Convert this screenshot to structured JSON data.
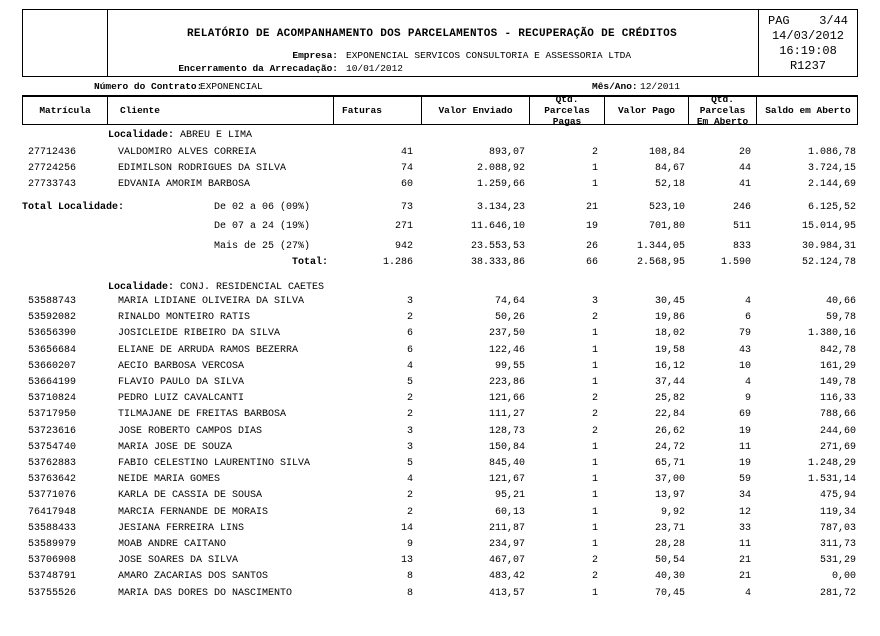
{
  "colors": {
    "text": "#000000",
    "border": "#000000",
    "background": "#ffffff"
  },
  "page": {
    "header": {
      "title": "RELATÓRIO DE ACOMPANHAMENTO DOS PARCELAMENTOS - RECUPERAÇÃO DE CRÉDITOS",
      "company_label": "Empresa:",
      "company_value": "EXPONENCIAL SERVICOS CONSULTORIA E ASSESSORIA LTDA",
      "closing_label": "Encerramento da Arrecadação:",
      "closing_value": "10/01/2012",
      "page_box": {
        "page_label": "PAG",
        "page_number": "3/44",
        "date": "14/03/2012",
        "time": "16:19:08",
        "report_code": "R1237"
      }
    },
    "contract_bar": {
      "contract_label": "Número do Contrato:",
      "contract_value": "EXPONENCIAL",
      "month_year_label": "Mês/Ano:",
      "month_year_value": "12/2011"
    },
    "table": {
      "columns": [
        "Matrícula",
        "Cliente",
        "Faturas",
        "Valor Enviado",
        "Qtd. Parcelas\nPagas",
        "Valor Pago",
        "Qtd. Parcelas\nEm Aberto",
        "Saldo em Aberto"
      ],
      "locality_label": "Localidade:",
      "total_locality_label": "Total Localidade:",
      "sections": [
        {
          "localidade": "ABREU E LIMA",
          "rows": [
            {
              "matricula": "27712436",
              "cliente": "VALDOMIRO ALVES CORREIA",
              "faturas": "41",
              "valor_enviado": "893,07",
              "qtd_pagas": "2",
              "valor_pago": "108,84",
              "qtd_aberto": "20",
              "saldo": "1.086,78"
            },
            {
              "matricula": "27724256",
              "cliente": "EDIMILSON RODRIGUES DA SILVA",
              "faturas": "74",
              "valor_enviado": "2.088,92",
              "qtd_pagas": "1",
              "valor_pago": "84,67",
              "qtd_aberto": "44",
              "saldo": "3.724,15"
            },
            {
              "matricula": "27733743",
              "cliente": "EDVANIA AMORIM BARBOSA",
              "faturas": "60",
              "valor_enviado": "1.259,66",
              "qtd_pagas": "1",
              "valor_pago": "52,18",
              "qtd_aberto": "41",
              "saldo": "2.144,69"
            }
          ],
          "totals": {
            "tiers": [
              {
                "label": "De 02 a 06 (09%)",
                "faturas": "73",
                "valor_enviado": "3.134,23",
                "qtd_pagas": "21",
                "valor_pago": "523,10",
                "qtd_aberto": "246",
                "saldo": "6.125,52"
              },
              {
                "label": "De 07 a 24 (19%)",
                "faturas": "271",
                "valor_enviado": "11.646,10",
                "qtd_pagas": "19",
                "valor_pago": "701,80",
                "qtd_aberto": "511",
                "saldo": "15.014,95"
              },
              {
                "label": "Mais de 25 (27%)",
                "faturas": "942",
                "valor_enviado": "23.553,53",
                "qtd_pagas": "26",
                "valor_pago": "1.344,05",
                "qtd_aberto": "833",
                "saldo": "30.984,31"
              }
            ],
            "grand": {
              "label": "Total:",
              "faturas": "1.286",
              "valor_enviado": "38.333,86",
              "qtd_pagas": "66",
              "valor_pago": "2.568,95",
              "qtd_aberto": "1.590",
              "saldo": "52.124,78"
            }
          }
        },
        {
          "localidade": "CONJ. RESIDENCIAL CAETES",
          "rows": [
            {
              "matricula": "53588743",
              "cliente": "MARIA LIDIANE OLIVEIRA DA SILVA",
              "faturas": "3",
              "valor_enviado": "74,64",
              "qtd_pagas": "3",
              "valor_pago": "30,45",
              "qtd_aberto": "4",
              "saldo": "40,66"
            },
            {
              "matricula": "53592082",
              "cliente": "RINALDO MONTEIRO RATIS",
              "faturas": "2",
              "valor_enviado": "50,26",
              "qtd_pagas": "2",
              "valor_pago": "19,86",
              "qtd_aberto": "6",
              "saldo": "59,78"
            },
            {
              "matricula": "53656390",
              "cliente": "JOSICLEIDE RIBEIRO DA SILVA",
              "faturas": "6",
              "valor_enviado": "237,50",
              "qtd_pagas": "1",
              "valor_pago": "18,02",
              "qtd_aberto": "79",
              "saldo": "1.380,16"
            },
            {
              "matricula": "53656684",
              "cliente": "ELIANE DE ARRUDA RAMOS BEZERRA",
              "faturas": "6",
              "valor_enviado": "122,46",
              "qtd_pagas": "1",
              "valor_pago": "19,58",
              "qtd_aberto": "43",
              "saldo": "842,78"
            },
            {
              "matricula": "53660207",
              "cliente": "AECIO BARBOSA VERCOSA",
              "faturas": "4",
              "valor_enviado": "99,55",
              "qtd_pagas": "1",
              "valor_pago": "16,12",
              "qtd_aberto": "10",
              "saldo": "161,29"
            },
            {
              "matricula": "53664199",
              "cliente": "FLAVIO PAULO DA SILVA",
              "faturas": "5",
              "valor_enviado": "223,86",
              "qtd_pagas": "1",
              "valor_pago": "37,44",
              "qtd_aberto": "4",
              "saldo": "149,78"
            },
            {
              "matricula": "53710824",
              "cliente": "PEDRO LUIZ CAVALCANTI",
              "faturas": "2",
              "valor_enviado": "121,66",
              "qtd_pagas": "2",
              "valor_pago": "25,82",
              "qtd_aberto": "9",
              "saldo": "116,33"
            },
            {
              "matricula": "53717950",
              "cliente": "TILMAJANE DE FREITAS BARBOSA",
              "faturas": "2",
              "valor_enviado": "111,27",
              "qtd_pagas": "2",
              "valor_pago": "22,84",
              "qtd_aberto": "69",
              "saldo": "788,66"
            },
            {
              "matricula": "53723616",
              "cliente": "JOSE ROBERTO CAMPOS DIAS",
              "faturas": "3",
              "valor_enviado": "128,73",
              "qtd_pagas": "2",
              "valor_pago": "26,62",
              "qtd_aberto": "19",
              "saldo": "244,60"
            },
            {
              "matricula": "53754740",
              "cliente": "MARIA JOSE DE SOUZA",
              "faturas": "3",
              "valor_enviado": "150,84",
              "qtd_pagas": "1",
              "valor_pago": "24,72",
              "qtd_aberto": "11",
              "saldo": "271,69"
            },
            {
              "matricula": "53762883",
              "cliente": "FABIO CELESTINO LAURENTINO SILVA",
              "faturas": "5",
              "valor_enviado": "845,40",
              "qtd_pagas": "1",
              "valor_pago": "65,71",
              "qtd_aberto": "19",
              "saldo": "1.248,29"
            },
            {
              "matricula": "53763642",
              "cliente": "NEIDE MARIA GOMES",
              "faturas": "4",
              "valor_enviado": "121,67",
              "qtd_pagas": "1",
              "valor_pago": "37,00",
              "qtd_aberto": "59",
              "saldo": "1.531,14"
            },
            {
              "matricula": "53771076",
              "cliente": "KARLA DE CASSIA DE SOUSA",
              "faturas": "2",
              "valor_enviado": "95,21",
              "qtd_pagas": "1",
              "valor_pago": "13,97",
              "qtd_aberto": "34",
              "saldo": "475,94"
            },
            {
              "matricula": "76417948",
              "cliente": "MARCIA FERNANDE DE MORAIS",
              "faturas": "2",
              "valor_enviado": "60,13",
              "qtd_pagas": "1",
              "valor_pago": "9,92",
              "qtd_aberto": "12",
              "saldo": "119,34"
            },
            {
              "matricula": "53588433",
              "cliente": "JESIANA FERREIRA LINS",
              "faturas": "14",
              "valor_enviado": "211,87",
              "qtd_pagas": "1",
              "valor_pago": "23,71",
              "qtd_aberto": "33",
              "saldo": "787,03"
            },
            {
              "matricula": "53589979",
              "cliente": "MOAB ANDRE CAITANO",
              "faturas": "9",
              "valor_enviado": "234,97",
              "qtd_pagas": "1",
              "valor_pago": "28,28",
              "qtd_aberto": "11",
              "saldo": "311,73"
            },
            {
              "matricula": "53706908",
              "cliente": "JOSE SOARES DA SILVA",
              "faturas": "13",
              "valor_enviado": "467,07",
              "qtd_pagas": "2",
              "valor_pago": "50,54",
              "qtd_aberto": "21",
              "saldo": "531,29"
            },
            {
              "matricula": "53748791",
              "cliente": "AMARO ZACARIAS DOS SANTOS",
              "faturas": "8",
              "valor_enviado": "483,42",
              "qtd_pagas": "2",
              "valor_pago": "40,30",
              "qtd_aberto": "21",
              "saldo": "0,00"
            },
            {
              "matricula": "53755526",
              "cliente": "MARIA DAS DORES DO NASCIMENTO",
              "faturas": "8",
              "valor_enviado": "413,57",
              "qtd_pagas": "1",
              "valor_pago": "70,45",
              "qtd_aberto": "4",
              "saldo": "281,72"
            }
          ]
        }
      ]
    }
  }
}
